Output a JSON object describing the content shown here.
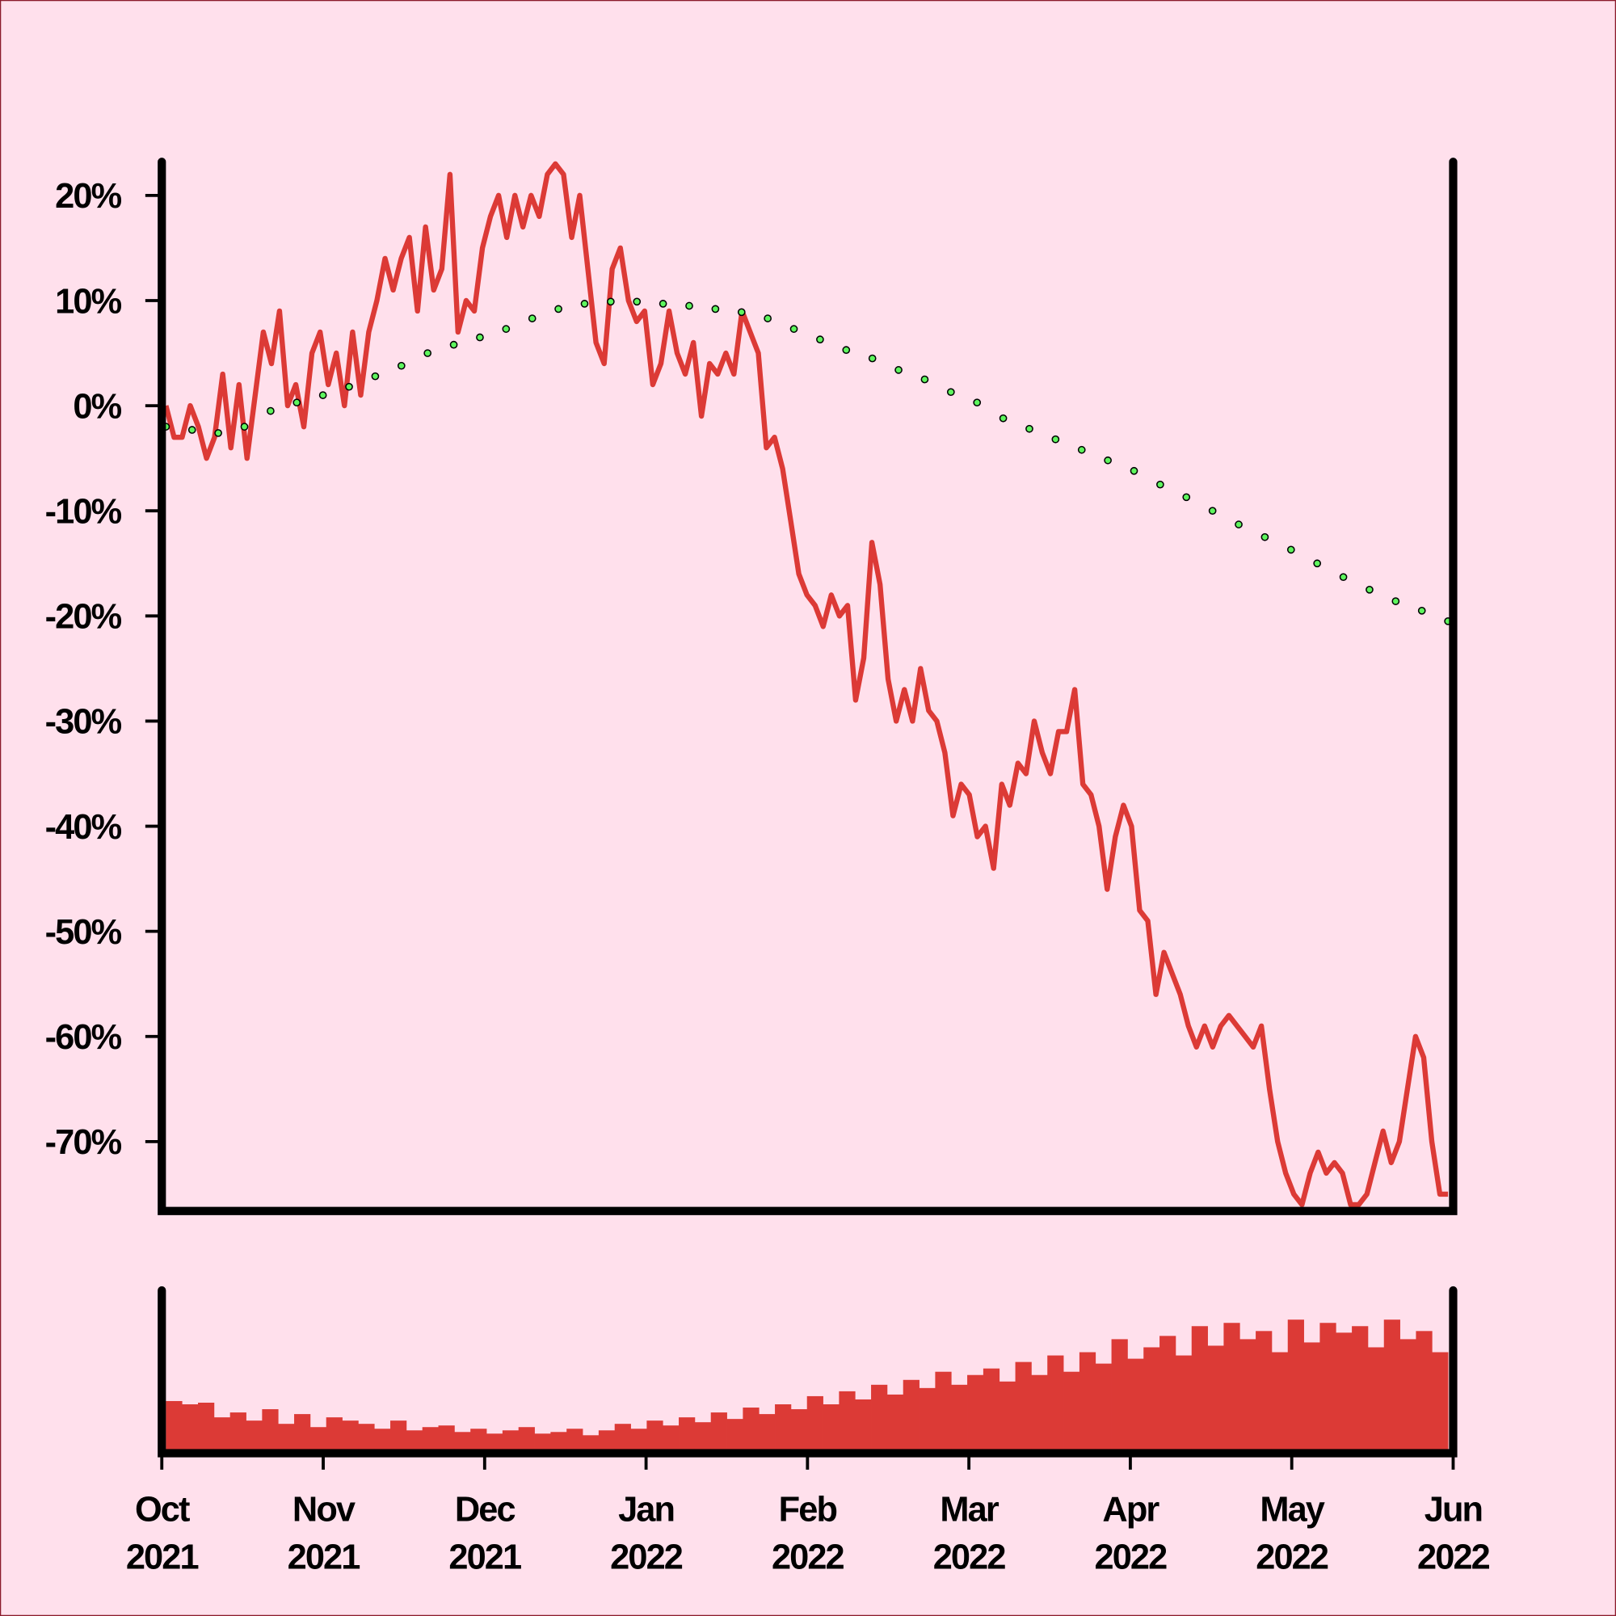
{
  "chart_data": [
    {
      "type": "line",
      "ylim": [
        -76.6,
        23.2
      ],
      "grid": false,
      "yticks": [
        {
          "value": 20,
          "label": "20%"
        },
        {
          "value": 10,
          "label": "10%"
        },
        {
          "value": 0,
          "label": "0%"
        },
        {
          "value": -10,
          "label": "-10%"
        },
        {
          "value": -20,
          "label": "-20%"
        },
        {
          "value": -30,
          "label": "-30%"
        },
        {
          "value": -40,
          "label": "-40%"
        },
        {
          "value": -50,
          "label": "-50%"
        },
        {
          "value": -60,
          "label": "-60%"
        },
        {
          "value": -70,
          "label": "-70%"
        }
      ],
      "series": [
        {
          "color": "#dc3a36",
          "style": "solid",
          "values": [
            0,
            -3,
            -3,
            0,
            -2,
            -5,
            -3,
            3,
            -4,
            2,
            -5,
            1,
            7,
            4,
            9,
            0,
            2,
            -2,
            5,
            7,
            2,
            5,
            0,
            7,
            1,
            7,
            10,
            14,
            11,
            14,
            16,
            9,
            17,
            11,
            13,
            22,
            7,
            10,
            9,
            15,
            18,
            20,
            16,
            20,
            17,
            20,
            18,
            22,
            23,
            22,
            16,
            20,
            13,
            6,
            4,
            13,
            15,
            10,
            8,
            9,
            2,
            4,
            9,
            5,
            3,
            6,
            -1,
            4,
            3,
            5,
            3,
            9,
            7,
            5,
            -4,
            -3,
            -6,
            -11,
            -16,
            -18,
            -19,
            -21,
            -18,
            -20,
            -19,
            -28,
            -24,
            -13,
            -17,
            -26,
            -30,
            -27,
            -30,
            -25,
            -29,
            -30,
            -33,
            -39,
            -36,
            -37,
            -41,
            -40,
            -44,
            -36,
            -38,
            -34,
            -35,
            -30,
            -33,
            -35,
            -31,
            -31,
            -27,
            -36,
            -37,
            -40,
            -46,
            -41,
            -38,
            -40,
            -48,
            -49,
            -56,
            -52,
            -54,
            -56,
            -59,
            -61,
            -59,
            -61,
            -59,
            -58,
            -59,
            -60,
            -61,
            -59,
            -65,
            -70,
            -73,
            -75,
            -76,
            -73,
            -71,
            -73,
            -72,
            -73,
            -76,
            -76,
            -75,
            -72,
            -69,
            -72,
            -70,
            -65,
            -60,
            -62,
            -70,
            -75,
            -75
          ]
        },
        {
          "color": "#5ef55e",
          "style": "dotted",
          "values": [
            -2.0,
            -2.3,
            -2.6,
            -2.0,
            -0.5,
            0.3,
            1.0,
            1.8,
            2.8,
            3.8,
            5.0,
            5.8,
            6.5,
            7.3,
            8.3,
            9.2,
            9.7,
            9.9,
            9.9,
            9.7,
            9.5,
            9.2,
            8.9,
            8.3,
            7.3,
            6.3,
            5.3,
            4.5,
            3.4,
            2.5,
            1.3,
            0.3,
            -1.2,
            -2.2,
            -3.2,
            -4.2,
            -5.2,
            -6.2,
            -7.5,
            -8.7,
            -10.0,
            -11.3,
            -12.5,
            -13.7,
            -15.0,
            -16.3,
            -17.5,
            -18.6,
            -19.5,
            -20.5
          ]
        }
      ]
    },
    {
      "type": "bar",
      "color": "#dc3a36",
      "ylim": [
        0,
        100
      ],
      "xticks": [
        [
          "Oct",
          "2021"
        ],
        [
          "Nov",
          "2021"
        ],
        [
          "Dec",
          "2021"
        ],
        [
          "Jan",
          "2022"
        ],
        [
          "Feb",
          "2022"
        ],
        [
          "Mar",
          "2022"
        ],
        [
          "Apr",
          "2022"
        ],
        [
          "May",
          "2022"
        ],
        [
          "Jun",
          "2022"
        ]
      ],
      "values": [
        32,
        30,
        31,
        22,
        25,
        20,
        27,
        18,
        24,
        16,
        22,
        20,
        18,
        15,
        20,
        14,
        16,
        17,
        13,
        15,
        12,
        14,
        16,
        12,
        13,
        15,
        11,
        14,
        18,
        15,
        20,
        17,
        22,
        19,
        25,
        21,
        28,
        24,
        30,
        27,
        35,
        30,
        38,
        33,
        42,
        36,
        45,
        40,
        50,
        42,
        48,
        52,
        44,
        56,
        48,
        60,
        50,
        62,
        55,
        70,
        58,
        65,
        72,
        60,
        78,
        66,
        80,
        70,
        75,
        62,
        82,
        68,
        80,
        74,
        78,
        65,
        82,
        70,
        75,
        62
      ]
    }
  ]
}
